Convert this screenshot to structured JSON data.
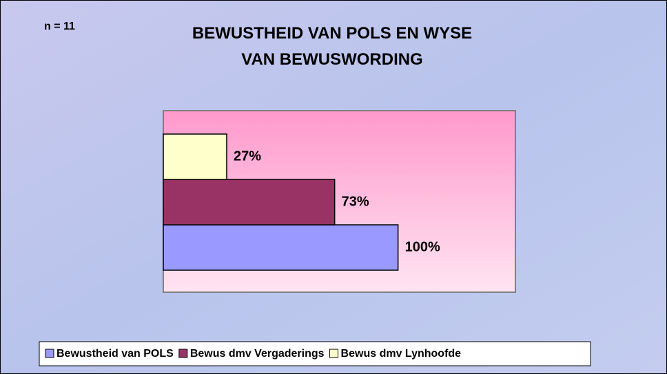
{
  "chart_data": {
    "type": "bar",
    "orientation": "horizontal",
    "title": "BEWUSTHEID VAN POLS EN WYSE VAN BEWUSWORDING",
    "annotation": "n = 11",
    "xlim": [
      0,
      150
    ],
    "legend": "bottom",
    "series": [
      {
        "name": "Bewustheid van POLS",
        "color": "#9999ff",
        "values": [
          100
        ],
        "value_labels": [
          "100%"
        ]
      },
      {
        "name": "Bewus dmv Vergaderings",
        "color": "#993366",
        "values": [
          73
        ],
        "value_labels": [
          "73%"
        ]
      },
      {
        "name": "Bewus dmv Lynhoofde",
        "color": "#ffffcc",
        "values": [
          27
        ],
        "value_labels": [
          "27%"
        ]
      }
    ]
  }
}
